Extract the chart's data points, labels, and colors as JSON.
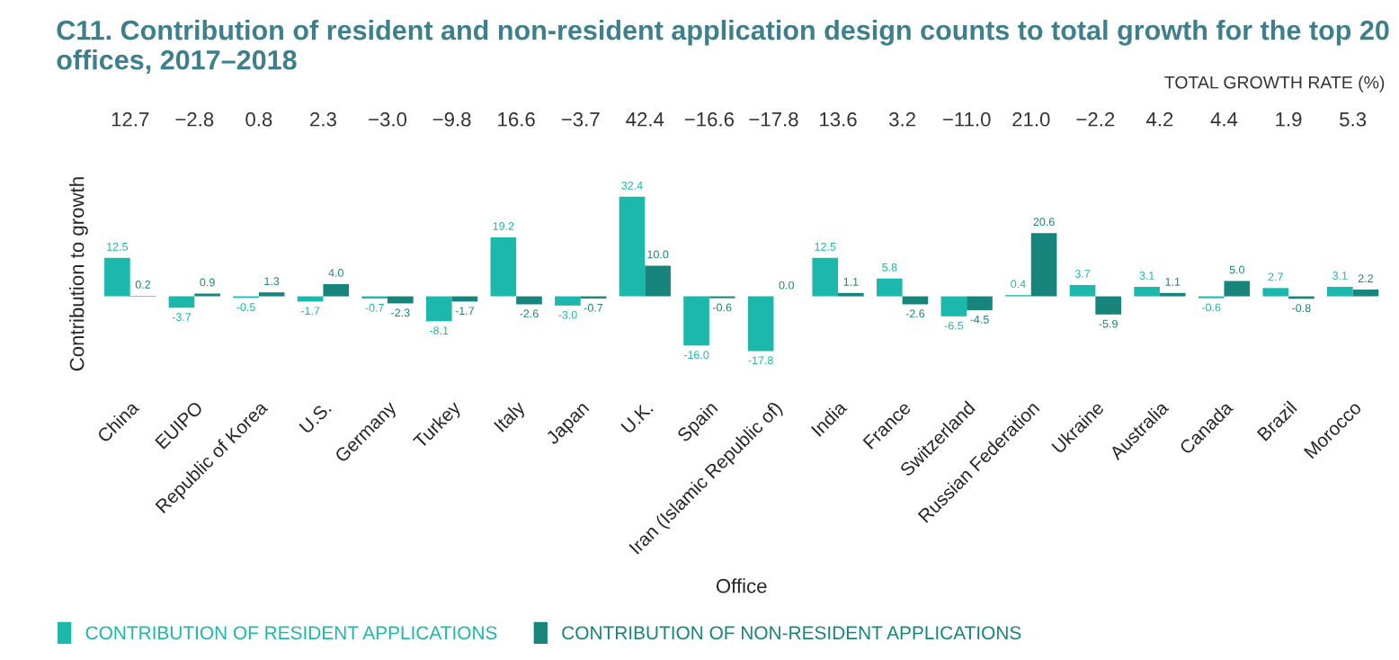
{
  "chart_data": {
    "type": "bar",
    "title": "C11. Contribution of resident and non-resident application design counts to total growth for the top 20 offices, 2017–2018",
    "xlabel": "Office",
    "ylabel": "Contribution to growth",
    "categories": [
      "China",
      "EUIPO",
      "Republic of Korea",
      "U.S.",
      "Germany",
      "Turkey",
      "Italy",
      "Japan",
      "U.K.",
      "Spain",
      "Iran (Islamic Republic of)",
      "India",
      "France",
      "Switzerland",
      "Russian Federation",
      "Ukraine",
      "Australia",
      "Canada",
      "Brazil",
      "Morocco"
    ],
    "series": [
      {
        "name": "CONTRIBUTION OF RESIDENT APPLICATIONS",
        "color": "#1bb8ab",
        "values": [
          12.5,
          -3.7,
          -0.5,
          -1.7,
          -0.7,
          -8.1,
          19.2,
          -3.0,
          32.4,
          -16.0,
          -17.8,
          12.5,
          5.8,
          -6.5,
          0.4,
          3.7,
          3.1,
          -0.6,
          2.7,
          3.1
        ],
        "value_labels": [
          "12.5",
          "-3.7",
          "-0.5",
          "-1.7",
          "-0.7",
          "-8.1",
          "19.2",
          "-3.0",
          "32.4",
          "-16.0",
          "-17.8",
          "12.5",
          "5.8",
          "-6.5",
          "0.4",
          "3.7",
          "3.1",
          "-0.6",
          "2.7",
          "3.1"
        ]
      },
      {
        "name": "CONTRIBUTION OF NON-RESIDENT APPLICATIONS",
        "color": "#17857b",
        "values": [
          0.2,
          0.9,
          1.3,
          4.0,
          -2.3,
          -1.7,
          -2.6,
          -0.7,
          10.0,
          -0.6,
          0.0,
          1.1,
          -2.6,
          -4.5,
          20.6,
          -5.9,
          1.1,
          5.0,
          -0.8,
          2.2
        ],
        "value_labels": [
          "0.2",
          "0.9",
          "1.3",
          "4.0",
          "-2.3",
          "-1.7",
          "-2.6",
          "-0.7",
          "10.0",
          "-0.6",
          "0.0",
          "1.1",
          "-2.6",
          "-4.5",
          "20.6",
          "-5.9",
          "1.1",
          "5.0",
          "-0.8",
          "2.2"
        ]
      }
    ],
    "tick_labels": "x",
    "grid": false,
    "legend": "bottom left",
    "annotations": [
      "TOTAL GROWTH RATE (%)",
      "12.7",
      "−2.8",
      "0.8",
      "2.3",
      "−3.0",
      "−9.8",
      "16.6",
      "−3.7",
      "42.4",
      "−16.6",
      "−17.8",
      "13.6",
      "3.2",
      "−11.0",
      "21.0",
      "−2.2",
      "4.2",
      "4.4",
      "1.9",
      "5.3"
    ]
  }
}
